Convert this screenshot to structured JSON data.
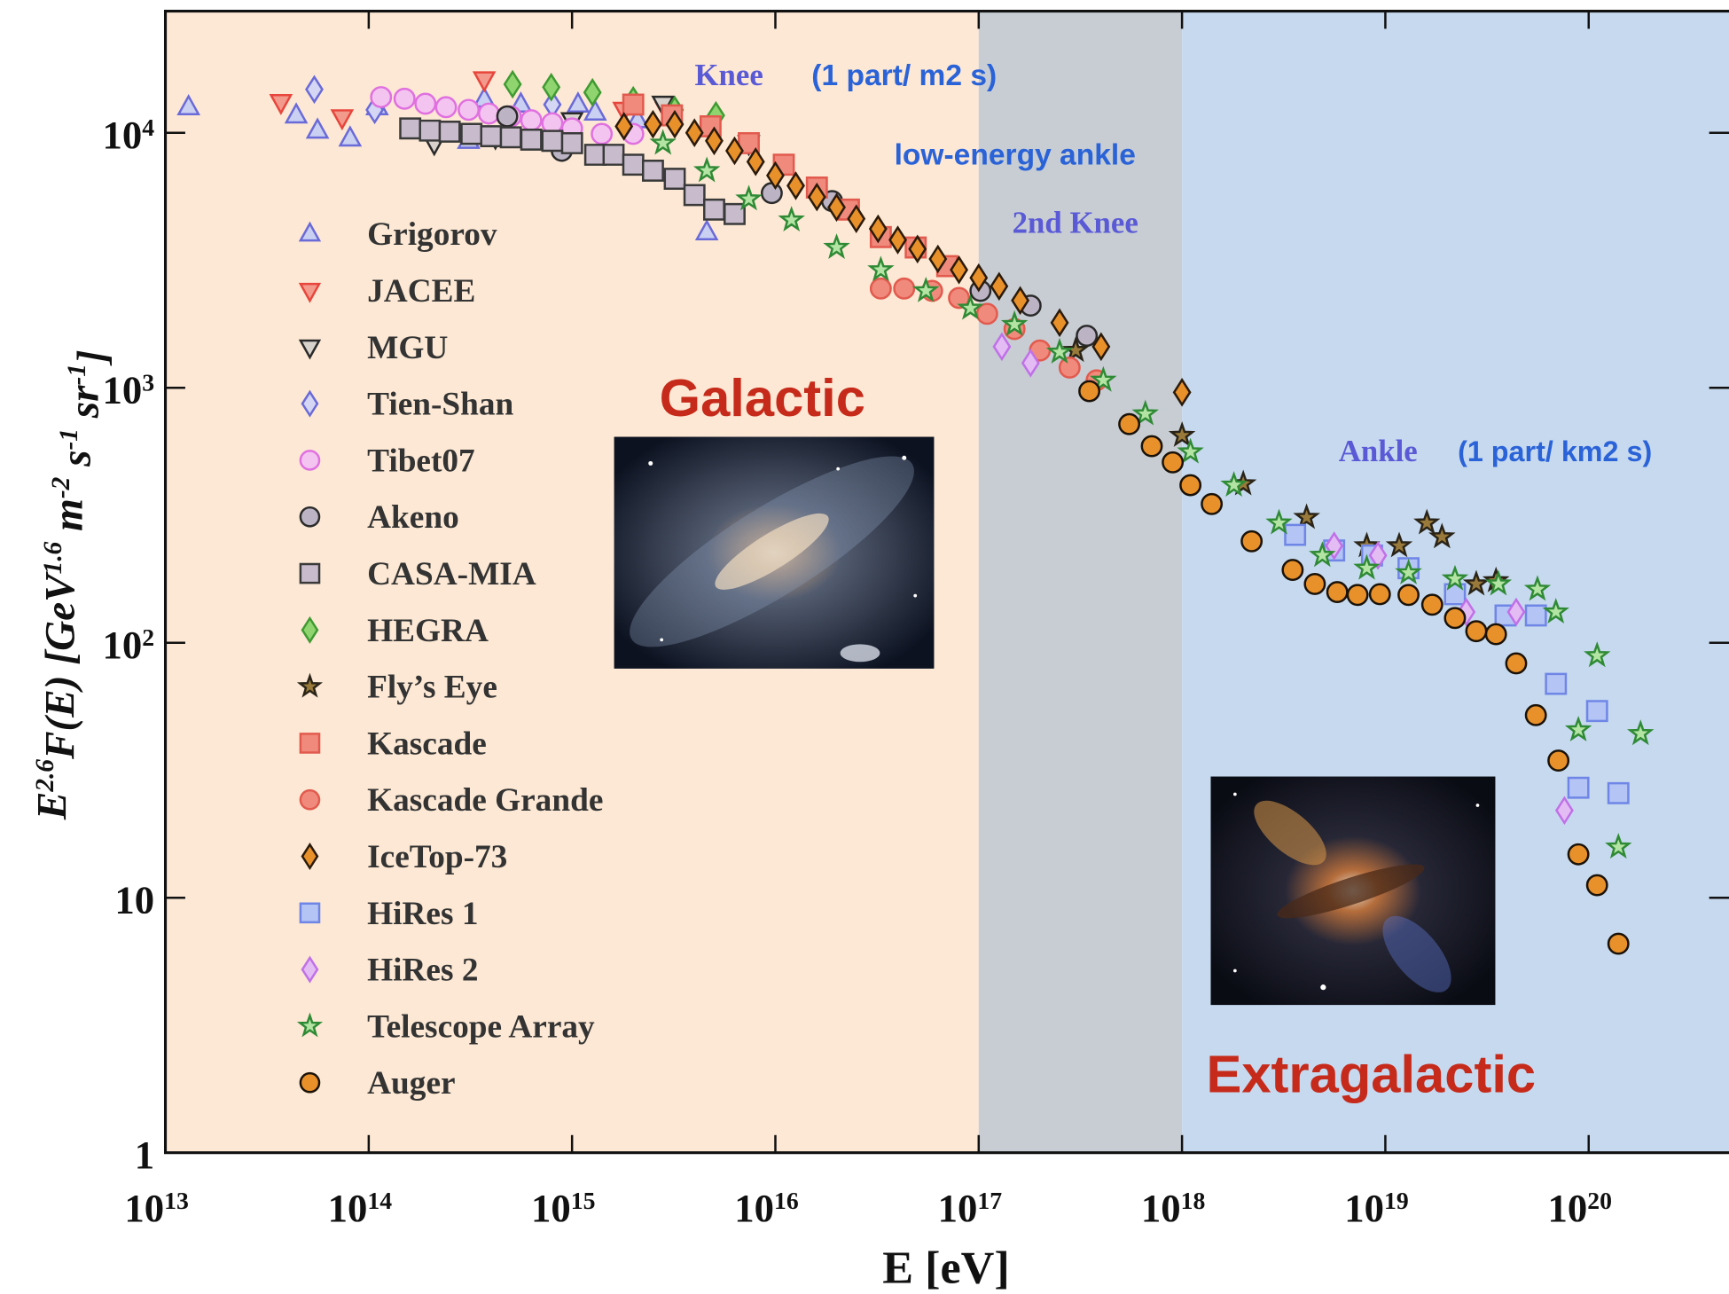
{
  "chart_data": {
    "type": "scatter",
    "xlabel": "E [eV]",
    "ylabel": "E^{2.6}F(E) [GeV^{1.6} m^{-2} s^{-1} sr^{-1}]",
    "xscale": "log",
    "yscale": "log",
    "xlim": [
      10000000000000.0,
      4.9e+20
    ],
    "ylim": [
      1,
      30000
    ],
    "xticks": [
      {
        "value": 10000000000000.0,
        "label": "10^{13}"
      },
      {
        "value": 100000000000000.0,
        "label": "10^{14}"
      },
      {
        "value": 1000000000000000.0,
        "label": "10^{15}"
      },
      {
        "value": 1e+16,
        "label": "10^{16}"
      },
      {
        "value": 1e+17,
        "label": "10^{17}"
      },
      {
        "value": 1e+18,
        "label": "10^{18}"
      },
      {
        "value": 1e+19,
        "label": "10^{19}"
      },
      {
        "value": 1e+20,
        "label": "10^{20}"
      }
    ],
    "yticks": [
      1,
      10,
      {
        "value": 100,
        "label": "10^{2}"
      },
      {
        "value": 1000,
        "label": "10^{3}"
      },
      {
        "value": 10000,
        "label": "10^{4}"
      }
    ],
    "grid": false,
    "legend": "center left",
    "shaded_spans": [
      {
        "x": [
          10000000000000.0,
          1e+17
        ],
        "color": "#fce8d4"
      },
      {
        "x": [
          1e+17,
          1e+18
        ],
        "color": "#c7cdd3"
      },
      {
        "x": [
          1e+18,
          4.9e+20
        ],
        "color": "#c6d9ee"
      }
    ],
    "annotations": [
      "Knee",
      "(1 part/ m2 s)",
      "low-energy ankle",
      "2nd Knee",
      "Galactic",
      "Ankle",
      "(1 part/ km2 s)",
      "Extragalactic"
    ],
    "series": [
      {
        "name": "Grigorov",
        "marker": "triangle-up",
        "color": "#6a6ad8",
        "fill": "#c9d0f2",
        "x": [
          13000000000000.0,
          44000000000000.0,
          56000000000000.0,
          81000000000000.0,
          110000000000000.0,
          310000000000000.0,
          370000000000000.0,
          560000000000000.0,
          1070000000000000.0,
          1300000000000000.0,
          2100000000000000.0,
          4600000000000000.0
        ],
        "values": [
          12600,
          11700,
          10200,
          9500,
          12600,
          9300,
          13500,
          12900,
          12900,
          12000,
          11200,
          4070
        ]
      },
      {
        "name": "JACEE",
        "marker": "triangle-down",
        "color": "#e8453c",
        "fill": "#f29a8c",
        "x": [
          37000000000000.0,
          74000000000000.0,
          370000000000000.0,
          1800000000000000.0,
          2900000000000000.0
        ],
        "values": [
          13200,
          11500,
          16200,
          12300,
          12300
        ]
      },
      {
        "name": "MGU",
        "marker": "triangle-down",
        "color": "#2a2a2a",
        "fill": "#d8d2cc",
        "x": [
          210000000000000.0,
          420000000000000.0,
          1000000000000000.0,
          2800000000000000.0,
          7400000000000000.0
        ],
        "values": [
          9100,
          9600,
          11200,
          13000,
          9100
        ]
      },
      {
        "name": "Tien-Shan",
        "marker": "diamond",
        "color": "#6a6ad8",
        "fill": "#d4d6f4",
        "x": [
          54000000000000.0,
          107000000000000.0,
          800000000000000.0
        ],
        "values": [
          14800,
          12300,
          12900
        ]
      },
      {
        "name": "Tibet07",
        "marker": "circle",
        "color": "#e070e0",
        "fill": "#f4c4f0",
        "x": [
          115000000000000.0,
          150000000000000.0,
          190000000000000.0,
          240000000000000.0,
          310000000000000.0,
          390000000000000.0,
          500000000000000.0,
          630000000000000.0,
          800000000000000.0,
          1000000000000000.0,
          1400000000000000.0,
          2000000000000000.0
        ],
        "values": [
          13800,
          13600,
          13000,
          12600,
          12300,
          11900,
          11600,
          11200,
          10900,
          10400,
          9900,
          9900
        ]
      },
      {
        "name": "Akeno",
        "marker": "circle",
        "color": "#2a2a2a",
        "fill": "#bcb4c4",
        "x": [
          480000000000000.0,
          890000000000000.0,
          9600000000000000.0,
          1.9e+16,
          1.02e+17,
          1.8e+17,
          3.4e+17
        ],
        "values": [
          11600,
          8500,
          5800,
          5400,
          2400,
          2100,
          1600
        ]
      },
      {
        "name": "CASA-MIA",
        "marker": "square",
        "color": "#3a3a3a",
        "fill": "#c8bccc",
        "x": [
          160000000000000.0,
          200000000000000.0,
          250000000000000.0,
          320000000000000.0,
          400000000000000.0,
          500000000000000.0,
          630000000000000.0,
          800000000000000.0,
          1000000000000000.0,
          1300000000000000.0,
          1600000000000000.0,
          2000000000000000.0,
          2500000000000000.0,
          3200000000000000.0,
          4000000000000000.0,
          5000000000000000.0,
          6300000000000000.0
        ],
        "values": [
          10400,
          10200,
          10100,
          9900,
          9700,
          9600,
          9400,
          9300,
          9100,
          8200,
          8200,
          7500,
          7100,
          6600,
          5700,
          5000,
          4800
        ]
      },
      {
        "name": "HEGRA",
        "marker": "diamond",
        "color": "#3f9a32",
        "fill": "#8fd46e",
        "x": [
          510000000000000.0,
          790000000000000.0,
          1260000000000000.0,
          2000000000000000.0,
          3200000000000000.0,
          5100000000000000.0
        ],
        "values": [
          15500,
          15100,
          14400,
          13400,
          12300,
          11700
        ]
      },
      {
        "name": "Fly’s Eye",
        "marker": "star",
        "color": "#2a2418",
        "fill": "#9a7a3a",
        "x": [
          3e+17,
          1e+18,
          2e+18,
          4.1e+18,
          8.1e+18,
          1.17e+19,
          1.6e+19,
          1.9e+19,
          2.8e+19,
          3.5e+19
        ],
        "values": [
          1400,
          650,
          420,
          310,
          240,
          240,
          295,
          260,
          170,
          175
        ]
      },
      {
        "name": "Kascade",
        "marker": "square",
        "color": "#e25a4e",
        "fill": "#f08a7c",
        "x": [
          2000000000000000.0,
          3100000000000000.0,
          4800000000000000.0,
          7400000000000000.0,
          1.1e+16,
          1.6e+16,
          2.3e+16,
          3.3e+16,
          4.9e+16,
          7e+16
        ],
        "values": [
          12900,
          11700,
          10600,
          9100,
          7500,
          6100,
          5000,
          3900,
          3550,
          3000
        ]
      },
      {
        "name": "Kascade Grande",
        "marker": "circle",
        "color": "#e25a4e",
        "fill": "#f08a7c",
        "x": [
          3.3e+16,
          4.3e+16,
          5.9e+16,
          8e+16,
          1.1e+17,
          1.5e+17,
          2e+17,
          2.8e+17,
          3.8e+17
        ],
        "values": [
          2450,
          2450,
          2400,
          2250,
          1950,
          1700,
          1400,
          1200,
          1070
        ]
      },
      {
        "name": "IceTop-73",
        "marker": "diamond",
        "color": "#2a1a0a",
        "fill": "#e8902a",
        "x": [
          1800000000000000.0,
          2500000000000000.0,
          3200000000000000.0,
          4000000000000000.0,
          5000000000000000.0,
          6300000000000000.0,
          8000000000000000.0,
          1e+16,
          1.26e+16,
          1.6e+16,
          2e+16,
          2.5e+16,
          3.2e+16,
          4e+16,
          5e+16,
          6.3e+16,
          8e+16,
          1e+17,
          1.26e+17,
          1.6e+17,
          2.5e+17,
          4e+17,
          1e+18
        ],
        "values": [
          10600,
          10800,
          10800,
          10000,
          9300,
          8500,
          7700,
          6800,
          6200,
          5600,
          5100,
          4600,
          4200,
          3800,
          3500,
          3200,
          2900,
          2700,
          2500,
          2200,
          1800,
          1450,
          960
        ]
      },
      {
        "name": "HiRes 1",
        "marker": "square",
        "color": "#6f86e6",
        "fill": "#b4c4f4",
        "x": [
          3.6e+18,
          5.6e+18,
          8.6e+18,
          1.3e+19,
          2.2e+19,
          3.9e+19,
          5.5e+19,
          6.9e+19,
          8.9e+19,
          1.1e+20,
          1.4e+20
        ],
        "values": [
          265,
          230,
          220,
          196,
          155,
          128,
          128,
          69,
          27,
          54,
          25.7
        ]
      },
      {
        "name": "HiRes 2",
        "marker": "diamond",
        "color": "#c070e8",
        "fill": "#e4bcf4",
        "x": [
          1.3e+17,
          1.8e+17,
          5.6e+18,
          9.2e+18,
          2.5e+19,
          4.4e+19,
          7.6e+19
        ],
        "values": [
          1450,
          1250,
          240,
          220,
          132,
          132,
          22
        ]
      },
      {
        "name": "Telescope Array",
        "marker": "star",
        "color": "#2f8a35",
        "fill": "#b4e4a4",
        "x": [
          2800000000000000.0,
          4600000000000000.0,
          7400000000000000.0,
          1.2e+16,
          2e+16,
          3.3e+16,
          5.5e+16,
          9.1e+16,
          1.5e+17,
          2.5e+17,
          4.1e+17,
          6.6e+17,
          1.1e+18,
          1.8e+18,
          3e+18,
          4.9e+18,
          8.1e+18,
          1.3e+19,
          2.2e+19,
          3.6e+19,
          5.6e+19,
          6.9e+19,
          8.9e+19,
          1.1e+20,
          1.4e+20,
          1.8e+20
        ],
        "values": [
          9100,
          7100,
          5500,
          4550,
          3550,
          2900,
          2400,
          2050,
          1770,
          1380,
          1070,
          790,
          560,
          415,
          295,
          220,
          196,
          188,
          178,
          170,
          162,
          132,
          45.5,
          89,
          15.8,
          44
        ]
      },
      {
        "name": "Auger",
        "marker": "circle",
        "color": "#1a1208",
        "fill": "#e8902a",
        "x": [
          3.5e+17,
          5.5e+17,
          7.1e+17,
          9e+17,
          1.1e+18,
          1.4e+18,
          2.2e+18,
          3.5e+18,
          4.5e+18,
          5.8e+18,
          7.3e+18,
          9.4e+18,
          1.3e+19,
          1.7e+19,
          2.2e+19,
          2.8e+19,
          3.5e+19,
          4.4e+19,
          5.5e+19,
          7.1e+19,
          8.9e+19,
          1.1e+20,
          1.4e+20
        ],
        "values": [
          970,
          720,
          590,
          510,
          415,
          350,
          250,
          193,
          170,
          158,
          154,
          155,
          154,
          141,
          125,
          111,
          108,
          83,
          52,
          34.5,
          14.8,
          11.2,
          6.6
        ]
      }
    ]
  }
}
